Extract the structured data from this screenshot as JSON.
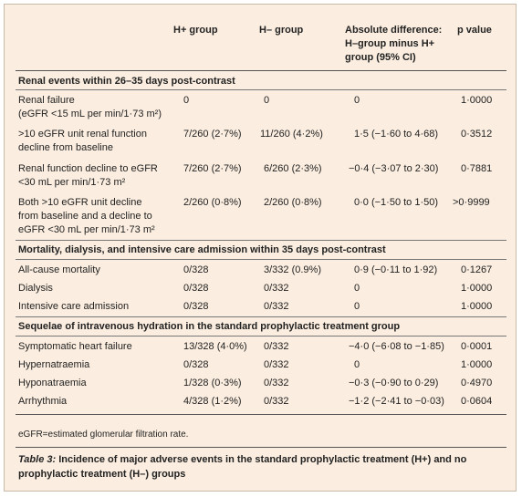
{
  "columns": {
    "h_plus": "H+ group",
    "h_minus": "H– group",
    "diff_line1": "Absolute difference:",
    "diff_line2": "H–group minus H+",
    "diff_line3": "group (95% CI)",
    "p": "p value"
  },
  "sections": [
    {
      "title": "Renal events within 26–35 days post-contrast",
      "rows": [
        {
          "label": [
            "Renal failure",
            "(eGFR <15 mL per min/1·73 m²)"
          ],
          "h_plus": "0",
          "h_minus": "0",
          "diff": "0",
          "p": "1·0000"
        },
        {
          "label": [
            ">10 eGFR unit renal function",
            "decline from baseline"
          ],
          "h_plus": "7/260 (2·7%)",
          "h_minus": "11/260 (4·2%)",
          "diff": "1·5 (−1·60 to 4·68)",
          "p": "0·3512"
        },
        {
          "label": [
            "Renal function decline to eGFR",
            "<30 mL per min/1·73 m²"
          ],
          "h_plus": "7/260 (2·7%)",
          "h_minus": "6/260 (2·3%)",
          "diff": "−0·4 (−3·07 to 2·30)",
          "p": "0·7881"
        },
        {
          "label": [
            "Both >10 eGFR unit decline",
            "from baseline and a decline to",
            "eGFR <30 mL per min/1·73 m²"
          ],
          "h_plus": "2/260 (0·8%)",
          "h_minus": "2/260 (0·8%)",
          "diff": "0·0 (−1·50 to 1·50)",
          "p": ">0·9999"
        }
      ]
    },
    {
      "title": "Mortality, dialysis, and intensive care admission within 35 days post-contrast",
      "rows": [
        {
          "label": [
            "All-cause mortality"
          ],
          "h_plus": "0/328",
          "h_minus": "3/332 (0.9%)",
          "diff": "0·9 (−0·11 to 1·92)",
          "p": "0·1267"
        },
        {
          "label": [
            "Dialysis"
          ],
          "h_plus": "0/328",
          "h_minus": "0/332",
          "diff": "0",
          "p": "1·0000"
        },
        {
          "label": [
            "Intensive care admission"
          ],
          "h_plus": "0/328",
          "h_minus": "0/332",
          "diff": "0",
          "p": "1·0000"
        }
      ]
    },
    {
      "title": "Sequelae of intravenous hydration in the standard prophylactic treatment group",
      "rows": [
        {
          "label": [
            "Symptomatic heart failure"
          ],
          "h_plus": "13/328 (4·0%)",
          "h_minus": "0/332",
          "diff": "−4·0 (−6·08 to −1·85)",
          "p": "0·0001"
        },
        {
          "label": [
            "Hypernatraemia"
          ],
          "h_plus": "0/328",
          "h_minus": "0/332",
          "diff": "0",
          "p": "1·0000"
        },
        {
          "label": [
            "Hyponatraemia"
          ],
          "h_plus": "1/328 (0·3%)",
          "h_minus": "0/332",
          "diff": "−0·3 (−0·90 to 0·29)",
          "p": "0·4970"
        },
        {
          "label": [
            "Arrhythmia"
          ],
          "h_plus": "4/328 (1·2%)",
          "h_minus": "0/332",
          "diff": "−1·2 (−2·41 to −0·03)",
          "p": "0·0604"
        }
      ]
    }
  ],
  "footnote": "eGFR=estimated glomerular filtration rate.",
  "caption": {
    "label": "Table 3:",
    "text": " Incidence of major adverse events in the standard prophylactic treatment (H+) and no prophylactic treatment (H–) groups"
  }
}
